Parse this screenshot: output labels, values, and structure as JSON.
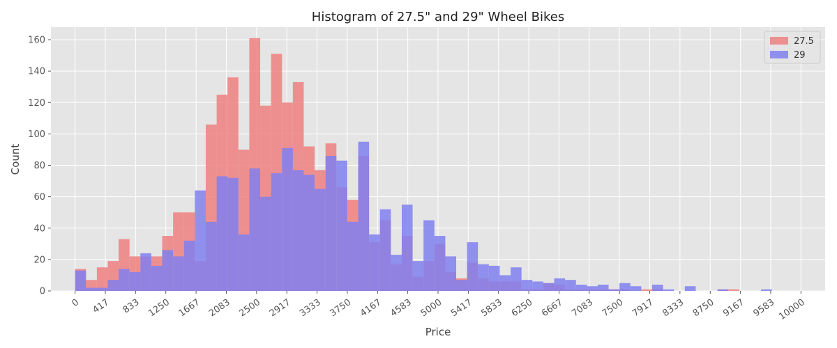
{
  "chart_data": {
    "type": "bar",
    "title": "Histogram of 27.5\" and 29\" Wheel Bikes",
    "xlabel": "Price",
    "ylabel": "Count",
    "xlim": [
      -333,
      10333
    ],
    "ylim": [
      0,
      168
    ],
    "grid": true,
    "legend_position": "top-right",
    "bin_width": 150,
    "x_ticks": [
      "0",
      "417",
      "833",
      "1250",
      "1667",
      "2083",
      "2500",
      "2917",
      "3333",
      "3750",
      "4167",
      "4583",
      "5000",
      "5417",
      "5833",
      "6250",
      "6667",
      "7083",
      "7500",
      "7917",
      "8333",
      "8750",
      "9167",
      "9583",
      "10000"
    ],
    "y_ticks": [
      0,
      20,
      40,
      60,
      80,
      100,
      120,
      140,
      160
    ],
    "bin_starts": [
      0,
      150,
      300,
      450,
      600,
      750,
      900,
      1050,
      1200,
      1350,
      1500,
      1650,
      1800,
      1950,
      2100,
      2250,
      2400,
      2550,
      2700,
      2850,
      3000,
      3150,
      3300,
      3450,
      3600,
      3750,
      3900,
      4050,
      4200,
      4350,
      4500,
      4650,
      4800,
      4950,
      5100,
      5250,
      5400,
      5550,
      5700,
      5850,
      6000,
      6150,
      6300,
      6450,
      6600,
      6750,
      6900,
      7050,
      7200,
      7350,
      7500,
      7650,
      7800,
      7950,
      8100,
      8250,
      8400,
      8550,
      8700,
      8850,
      9000,
      9150,
      9300,
      9450,
      9600,
      9750
    ],
    "series": [
      {
        "name": "27.5",
        "color": "#f08080",
        "values": [
          14,
          7,
          15,
          19,
          33,
          22,
          22,
          22,
          35,
          50,
          50,
          19,
          106,
          125,
          136,
          90,
          161,
          118,
          151,
          120,
          133,
          92,
          77,
          94,
          66,
          58,
          86,
          31,
          45,
          17,
          35,
          9,
          19,
          30,
          12,
          8,
          18,
          8,
          6,
          6,
          6,
          1,
          1,
          5,
          4,
          1,
          1,
          1,
          1,
          1,
          1,
          0,
          1,
          1,
          0,
          0,
          0,
          0,
          0,
          1,
          1,
          0,
          0,
          0,
          0,
          0
        ]
      },
      {
        "name": "29",
        "color": "#8080f0",
        "values": [
          13,
          2,
          2,
          7,
          14,
          12,
          24,
          16,
          26,
          22,
          32,
          64,
          44,
          73,
          72,
          36,
          78,
          60,
          75,
          91,
          77,
          74,
          65,
          86,
          83,
          44,
          95,
          36,
          52,
          23,
          55,
          19,
          45,
          35,
          22,
          7,
          31,
          17,
          16,
          10,
          15,
          7,
          6,
          5,
          8,
          7,
          4,
          3,
          4,
          1,
          5,
          3,
          0,
          4,
          1,
          0,
          3,
          0,
          0,
          1,
          0,
          0,
          0,
          1,
          0,
          0
        ]
      }
    ]
  }
}
